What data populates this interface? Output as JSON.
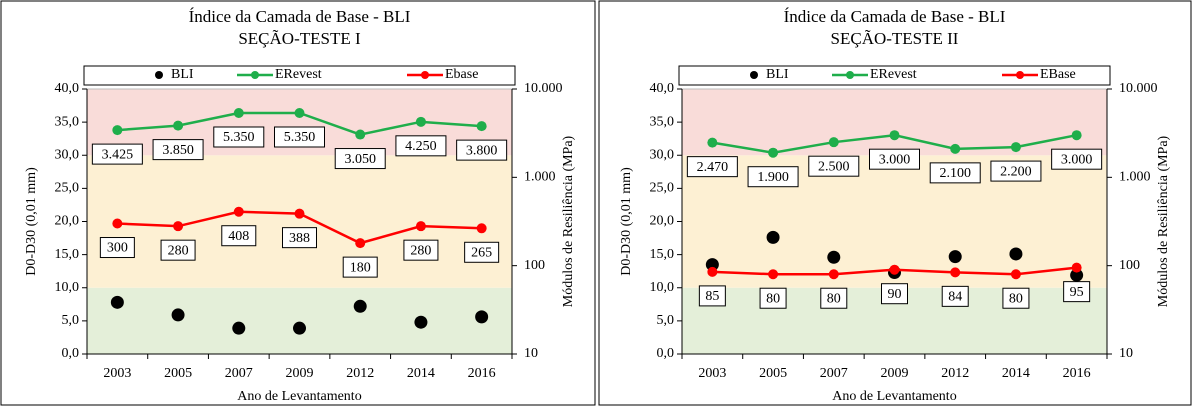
{
  "chart_data": [
    {
      "type": "line",
      "title": "Índice da Camada de Base - BLI",
      "subtitle": "SEÇÃO-TESTE I",
      "x_label": "Ano de Levantamento",
      "y_label": "D0-D30  (0,01 mm)",
      "y2_label": "Módulos de Resiliência (MPa)",
      "categories": [
        "2003",
        "2005",
        "2007",
        "2009",
        "2012",
        "2014",
        "2016"
      ],
      "series": [
        {
          "name": "BLI",
          "type": "scatter",
          "color": "#000000",
          "values": [
            7.8,
            5.9,
            3.9,
            3.9,
            7.2,
            4.8,
            5.6
          ]
        },
        {
          "name": "ERevest",
          "type": "line",
          "axis": "y2",
          "color": "#1fae4b",
          "values": [
            3425,
            3850,
            5350,
            5350,
            3050,
            4250,
            3800
          ],
          "value_labels": [
            "3.425",
            "3.850",
            "5.350",
            "5.350",
            "3.050",
            "4.250",
            "3.800"
          ]
        },
        {
          "name": "Ebase",
          "type": "line",
          "axis": "y2",
          "color": "#ff0000",
          "values": [
            300,
            280,
            408,
            388,
            180,
            280,
            265
          ],
          "value_labels": [
            "300",
            "280",
            "408",
            "388",
            "180",
            "280",
            "265"
          ]
        }
      ],
      "bands": [
        {
          "from": 0,
          "to": 10,
          "color": "#e4efd9"
        },
        {
          "from": 10,
          "to": 30,
          "color": "#fdf0d3"
        },
        {
          "from": 30,
          "to": 40,
          "color": "#f9dcd9"
        }
      ],
      "ylim": [
        0,
        40
      ],
      "yticks": [
        {
          "value": 0,
          "label": "0,0"
        },
        {
          "value": 5,
          "label": "5,0"
        },
        {
          "value": 10,
          "label": "10,0"
        },
        {
          "value": 15,
          "label": "15,0"
        },
        {
          "value": 20,
          "label": "20,0"
        },
        {
          "value": 25,
          "label": "25,0"
        },
        {
          "value": 30,
          "label": "30,0"
        },
        {
          "value": 35,
          "label": "35,0"
        },
        {
          "value": 40,
          "label": "40,0"
        }
      ],
      "y2lim": [
        10,
        10000
      ],
      "y2_log": true,
      "y2ticks": [
        10,
        100,
        {
          "value": 1000,
          "label": "1.000"
        },
        {
          "value": 10000,
          "label": "10.000"
        }
      ]
    },
    {
      "type": "line",
      "title": "Índice da Camada de Base - BLI",
      "subtitle": "SEÇÃO-TESTE II",
      "x_label": "Ano de Levantamento",
      "y_label": "D0-D30  (0,01 mm)",
      "y2_label": "Módulos de Resiliência (MPa)",
      "categories": [
        "2003",
        "2005",
        "2007",
        "2009",
        "2012",
        "2014",
        "2016"
      ],
      "series": [
        {
          "name": "BLI",
          "type": "scatter",
          "color": "#000000",
          "values": [
            13.5,
            17.6,
            14.6,
            12.3,
            14.7,
            15.1,
            11.9
          ]
        },
        {
          "name": "ERevest",
          "type": "line",
          "axis": "y2",
          "color": "#1fae4b",
          "values": [
            2470,
            1900,
            2500,
            3000,
            2100,
            2200,
            3000
          ],
          "value_labels": [
            "2.470",
            "1.900",
            "2.500",
            "3.000",
            "2.100",
            "2.200",
            "3.000"
          ]
        },
        {
          "name": "EBase",
          "type": "line",
          "axis": "y2",
          "color": "#ff0000",
          "values": [
            85,
            80,
            80,
            90,
            84,
            80,
            95
          ],
          "value_labels": [
            "85",
            "80",
            "80",
            "90",
            "84",
            "80",
            "95"
          ]
        }
      ],
      "bands": [
        {
          "from": 0,
          "to": 10,
          "color": "#e4efd9"
        },
        {
          "from": 10,
          "to": 30,
          "color": "#fdf0d3"
        },
        {
          "from": 30,
          "to": 40,
          "color": "#f9dcd9"
        }
      ],
      "ylim": [
        0,
        40
      ],
      "yticks": [
        {
          "value": 0,
          "label": "0,0"
        },
        {
          "value": 5,
          "label": "5,0"
        },
        {
          "value": 10,
          "label": "10,0"
        },
        {
          "value": 15,
          "label": "15,0"
        },
        {
          "value": 20,
          "label": "20,0"
        },
        {
          "value": 25,
          "label": "25,0"
        },
        {
          "value": 30,
          "label": "30,0"
        },
        {
          "value": 35,
          "label": "35,0"
        },
        {
          "value": 40,
          "label": "40,0"
        }
      ],
      "y2lim": [
        10,
        10000
      ],
      "y2_log": true,
      "y2ticks": [
        10,
        100,
        {
          "value": 1000,
          "label": "1.000"
        },
        {
          "value": 10000,
          "label": "10.000"
        }
      ]
    }
  ]
}
